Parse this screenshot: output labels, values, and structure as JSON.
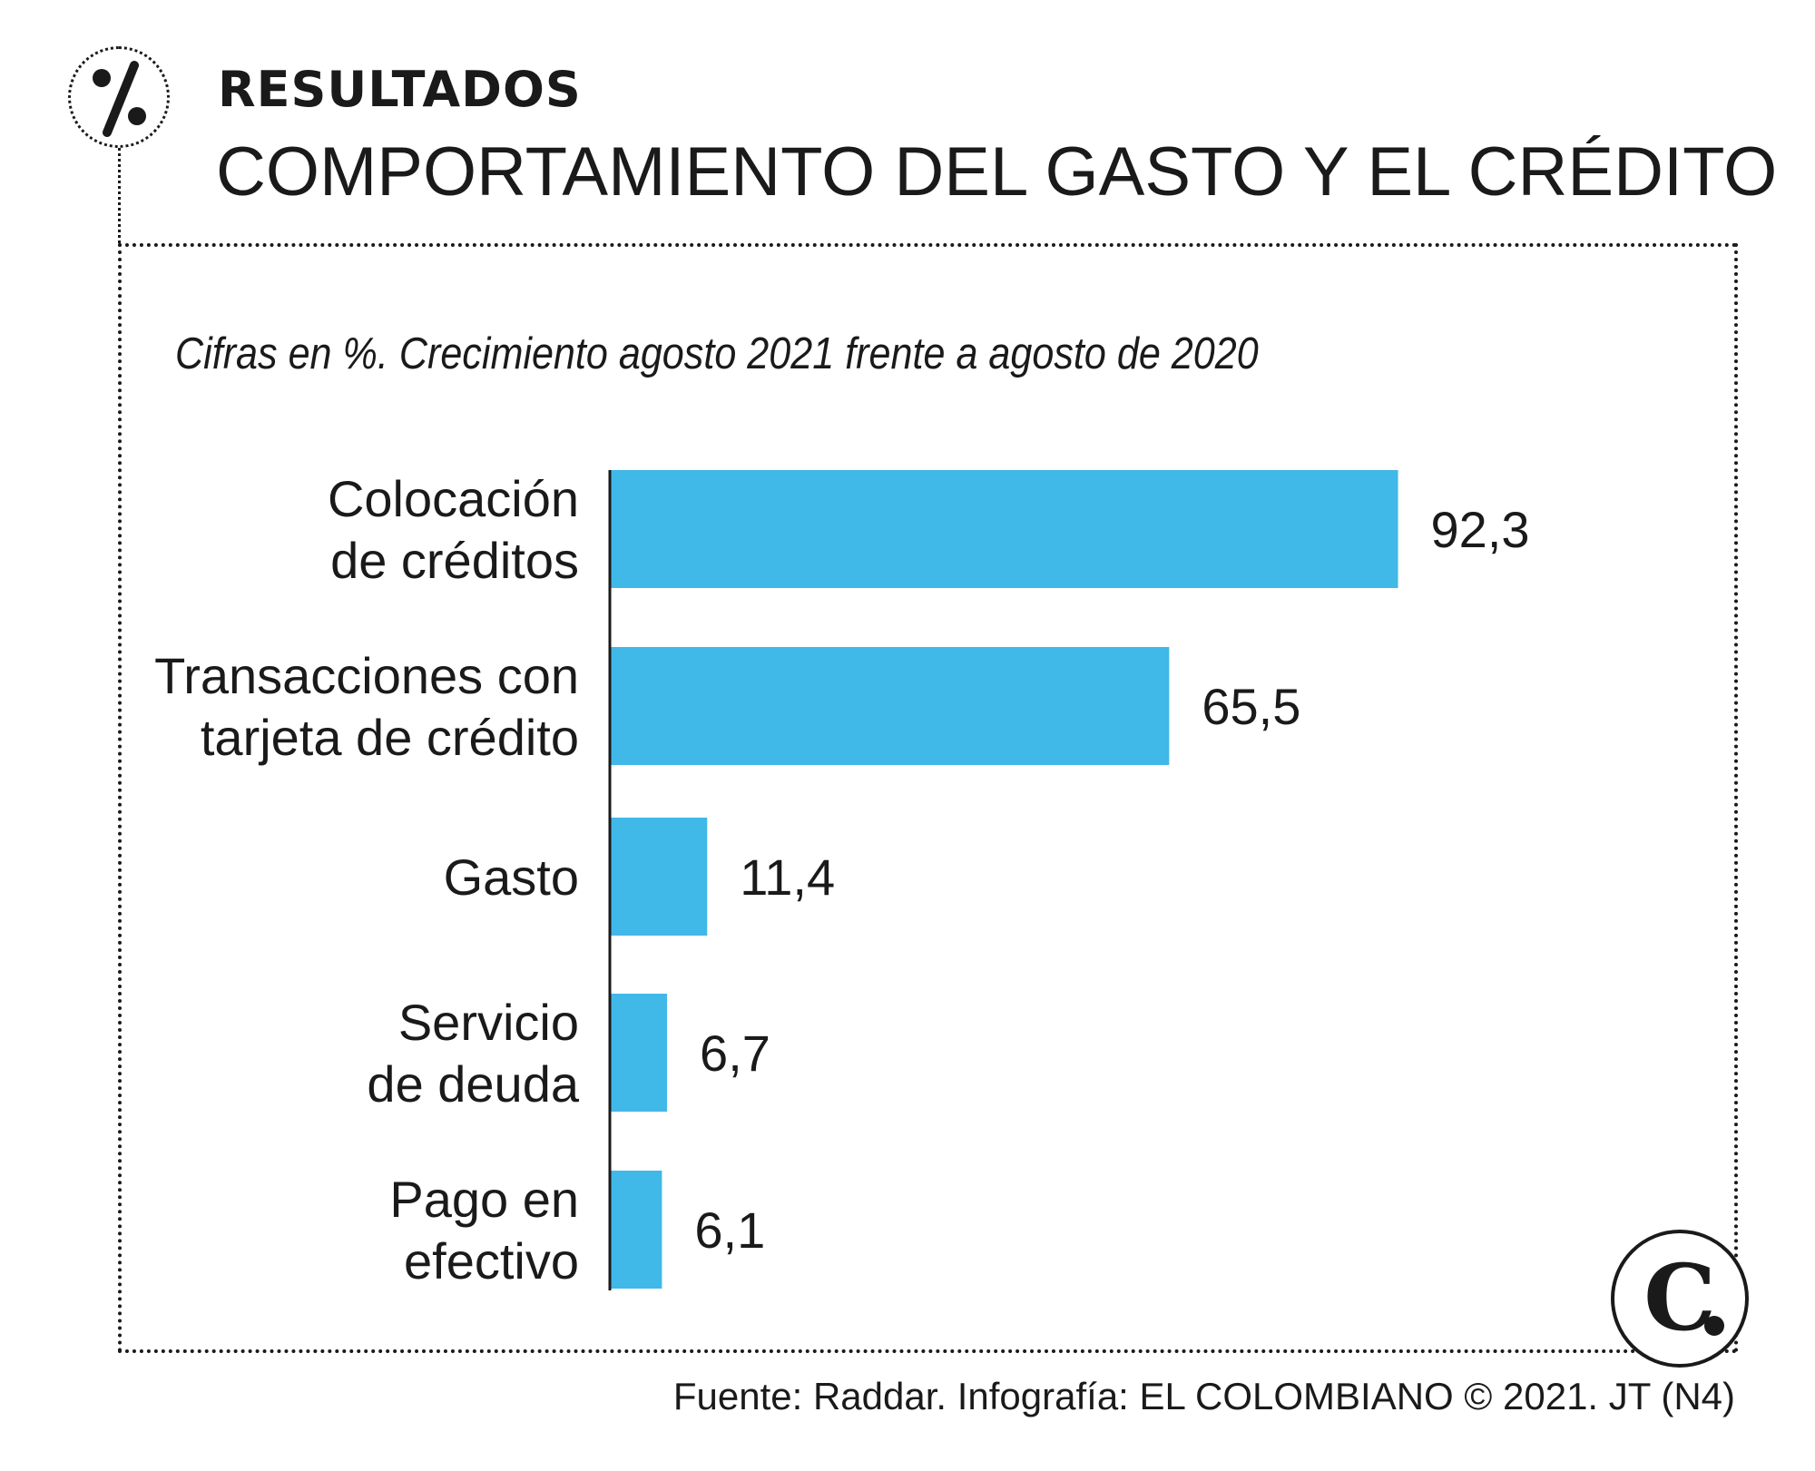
{
  "header": {
    "icon": "percent-icon",
    "kicker": "RESULTADOS",
    "title": "COMPORTAMIENTO DEL GASTO Y EL CRÉDITO"
  },
  "colors": {
    "bar": "#40b8e8",
    "text": "#1a1a1a",
    "axis": "#1a1a1a"
  },
  "chart_data": {
    "type": "bar",
    "orientation": "horizontal",
    "title": "COMPORTAMIENTO DEL GASTO Y EL CRÉDITO",
    "subtitle": "Cifras en %. Crecimiento agosto 2021 frente a agosto de 2020",
    "categories": [
      [
        "Colocación",
        "de créditos"
      ],
      [
        "Transacciones con",
        "tarjeta de crédito"
      ],
      [
        "Gasto"
      ],
      [
        "Servicio",
        "de deuda"
      ],
      [
        "Pago en",
        "efectivo"
      ]
    ],
    "values": [
      92.3,
      65.5,
      11.4,
      6.7,
      6.1
    ],
    "value_labels": [
      "92,3",
      "65,5",
      "11,4",
      "6,7",
      "6,1"
    ],
    "xlim": [
      0,
      100
    ],
    "xlabel": "",
    "ylabel": "",
    "grid": false,
    "legend": "none"
  },
  "logo": {
    "letter": "C",
    "name": "el-colombiano-logo"
  },
  "footer": {
    "source": "Fuente: Raddar. Infografía: EL COLOMBIANO © 2021. JT (N4)"
  }
}
